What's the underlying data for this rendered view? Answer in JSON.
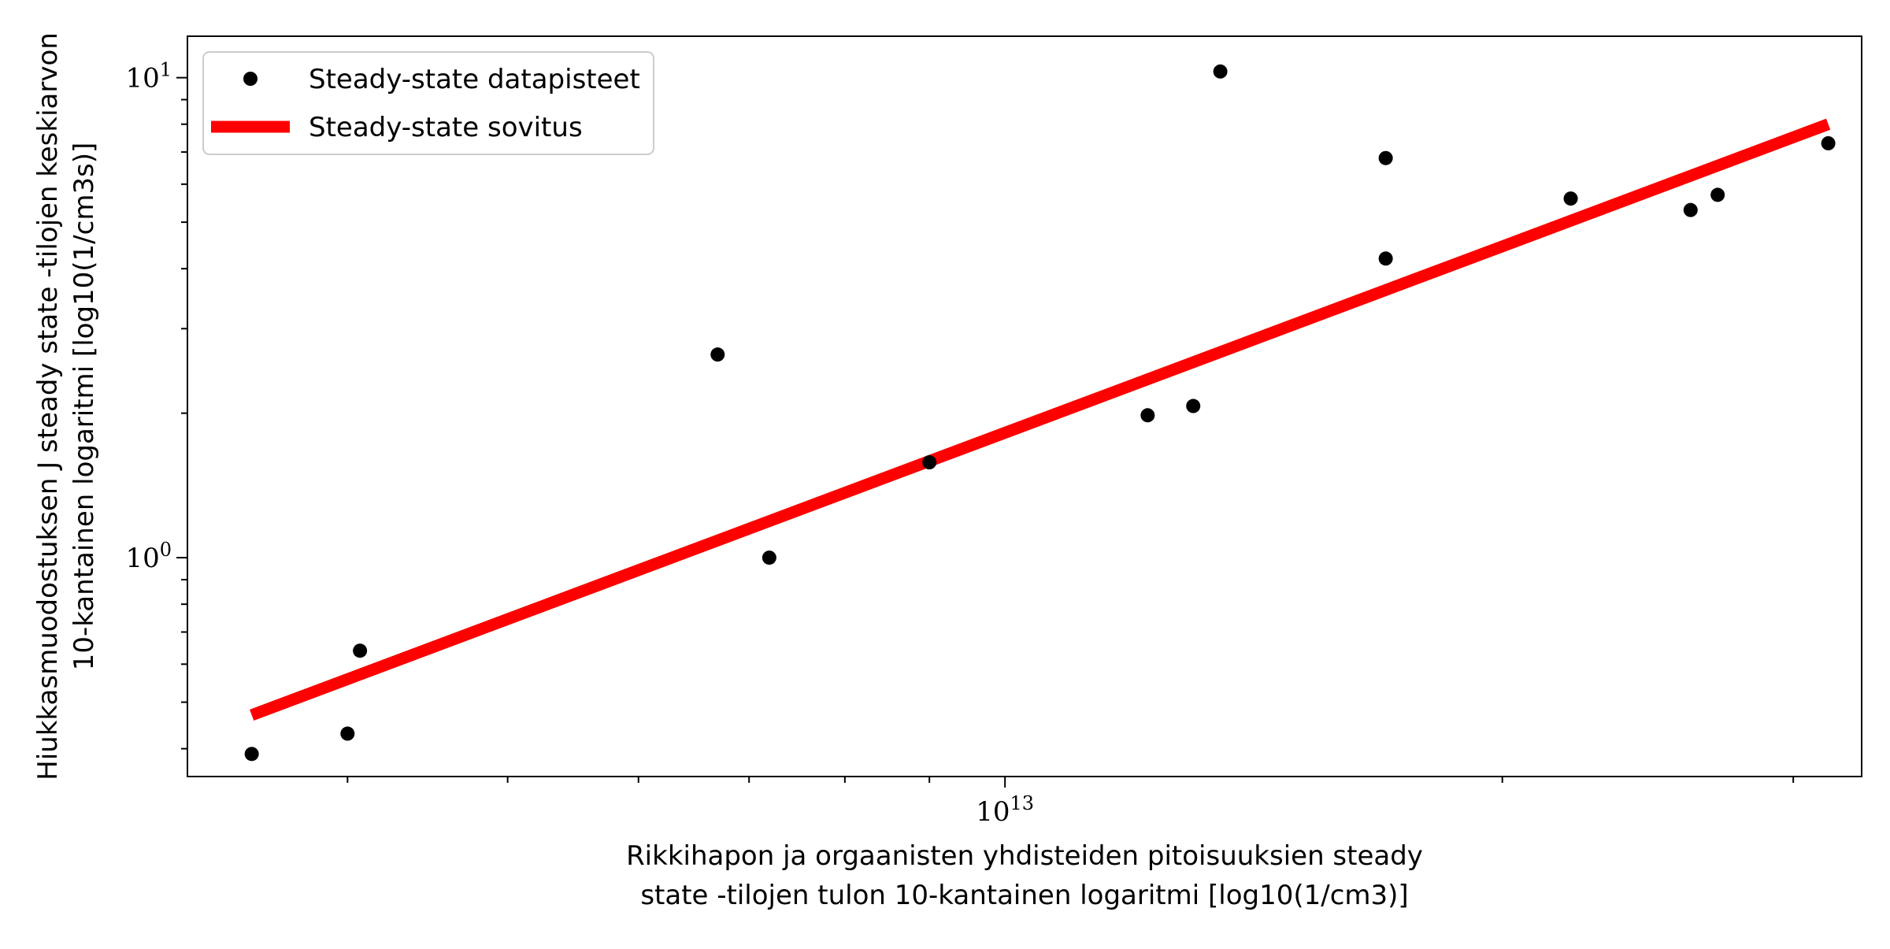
{
  "chart_data": {
    "type": "scatter",
    "xlabel_line1": "Rikkihapon ja orgaanisten yhdisteiden pitoisuuksien steady",
    "xlabel_line2": "state -tilojen tulon 10-kantainen logaritmi [log10(1/cm3)]",
    "ylabel_line1": "Hiukkasmuodostuksen J steady state -tilojen keskiarvon",
    "ylabel_line2": "10-kantainen logaritmi [log10(1/cm3s)]",
    "x_scale": "log",
    "y_scale": "log",
    "xlim": [
      3200000000000.0,
      33000000000000.0
    ],
    "ylim": [
      0.35,
      12.2
    ],
    "x_tick_major": [
      {
        "value": 10000000000000.0,
        "base": "10",
        "exp": "13"
      }
    ],
    "x_tick_minor": [
      4000000000000.0,
      5000000000000.0,
      6000000000000.0,
      7000000000000.0,
      8000000000000.0,
      9000000000000.0,
      20000000000000.0,
      30000000000000.0
    ],
    "y_tick_major": [
      {
        "value": 1,
        "base": "10",
        "exp": "0"
      },
      {
        "value": 10,
        "base": "10",
        "exp": "1"
      }
    ],
    "y_tick_minor": [
      0.4,
      0.5,
      0.6,
      0.7,
      0.8,
      0.9,
      2,
      3,
      4,
      5,
      6,
      7,
      8,
      9
    ],
    "grid": false,
    "legend_position": "top-left",
    "series": [
      {
        "name": "Steady-state datapisteet",
        "kind": "points",
        "color": "#000000",
        "points": [
          [
            3500000000000.0,
            0.39
          ],
          [
            4000000000000.0,
            0.43
          ],
          [
            4070000000000.0,
            0.64
          ],
          [
            6700000000000.0,
            2.65
          ],
          [
            7200000000000.0,
            1.0
          ],
          [
            9000000000000.0,
            1.58
          ],
          [
            12200000000000.0,
            1.98
          ],
          [
            13000000000000.0,
            2.07
          ],
          [
            13500000000000.0,
            10.3
          ],
          [
            17000000000000.0,
            6.8
          ],
          [
            17000000000000.0,
            4.2
          ],
          [
            22000000000000.0,
            5.6
          ],
          [
            26000000000000.0,
            5.3
          ],
          [
            27000000000000.0,
            5.7
          ],
          [
            31500000000000.0,
            7.3
          ]
        ]
      },
      {
        "name": "Steady-state sovitus",
        "kind": "line",
        "color": "#ff0000",
        "points": [
          [
            3500000000000.0,
            0.47
          ],
          [
            31500000000000.0,
            8.0
          ]
        ]
      }
    ]
  }
}
